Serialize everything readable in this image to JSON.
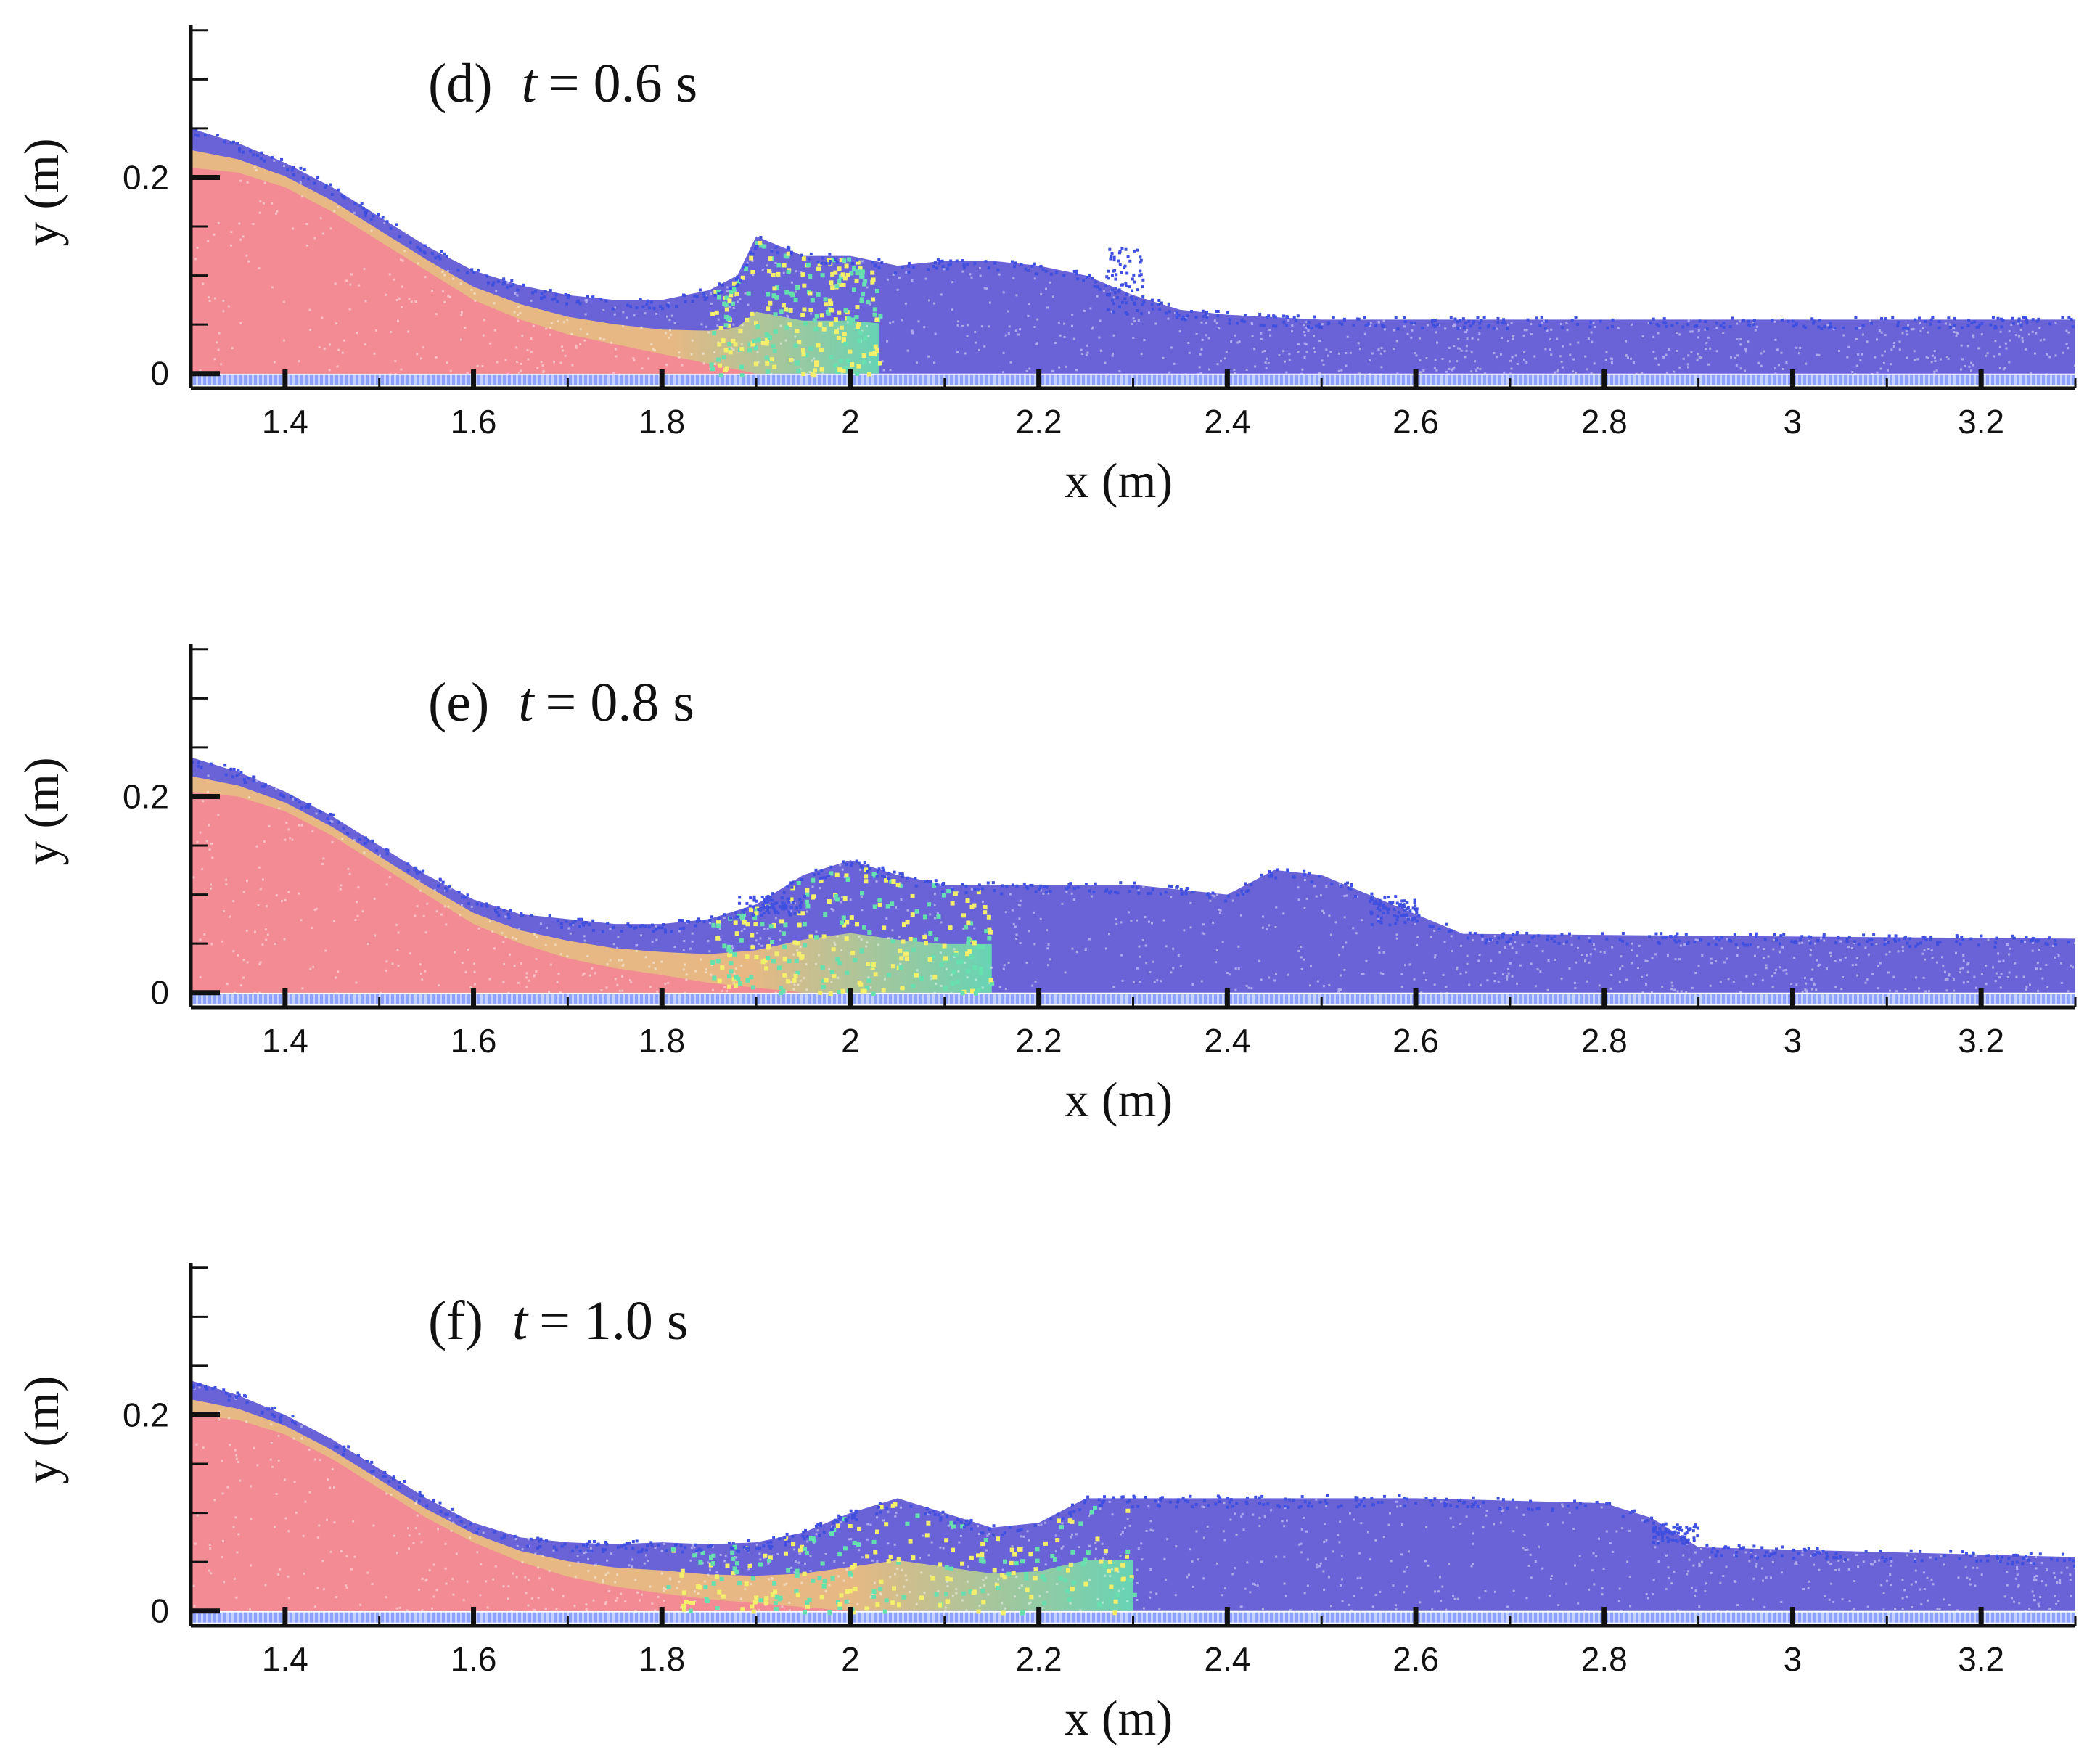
{
  "colors": {
    "core": "#f28b93",
    "transition_warm": "#f5c27a",
    "transition_cool": "#67e0b0",
    "fluid": "#6a63d8",
    "splash": "#3f4fe0",
    "bed": "#8ea2ff",
    "axis": "#111111"
  },
  "chart_data": [
    {
      "type": "scatter",
      "panel_label": "(d)",
      "time_var": "t",
      "time_value": "= 0.6 s",
      "xlabel": "x (m)",
      "ylabel": "y (m)",
      "xlim": [
        1.3,
        3.3
      ],
      "ylim": [
        -0.015,
        0.355
      ],
      "x_ticks": [
        1.4,
        1.6,
        1.8,
        2.0,
        2.2,
        2.4,
        2.6,
        2.8,
        3.0,
        3.2
      ],
      "x_tick_labels": [
        "1.4",
        "1.6",
        "1.8",
        "2",
        "2.2",
        "2.4",
        "2.6",
        "2.8",
        "3",
        "3.2"
      ],
      "y_ticks": [
        0,
        0.2
      ],
      "y_tick_labels": [
        "0",
        "0.2"
      ],
      "core_surface": {
        "x": [
          1.3,
          1.35,
          1.4,
          1.45,
          1.5,
          1.55,
          1.6,
          1.65,
          1.7,
          1.75,
          1.8,
          1.85,
          1.9
        ],
        "y": [
          0.21,
          0.205,
          0.19,
          0.165,
          0.135,
          0.105,
          0.075,
          0.055,
          0.04,
          0.03,
          0.02,
          0.01,
          0.0
        ]
      },
      "free_surface": {
        "x": [
          1.3,
          1.35,
          1.4,
          1.45,
          1.5,
          1.55,
          1.6,
          1.65,
          1.7,
          1.75,
          1.8,
          1.85,
          1.88,
          1.9,
          1.95,
          2.0,
          2.05,
          2.1,
          2.15,
          2.2,
          2.25,
          2.3,
          2.35,
          2.4,
          2.5,
          2.6,
          3.3
        ],
        "y": [
          0.25,
          0.235,
          0.215,
          0.19,
          0.16,
          0.13,
          0.105,
          0.09,
          0.08,
          0.075,
          0.075,
          0.085,
          0.1,
          0.14,
          0.12,
          0.12,
          0.11,
          0.115,
          0.115,
          0.11,
          0.1,
          0.08,
          0.065,
          0.06,
          0.055,
          0.055,
          0.055
        ]
      },
      "mixing_zone": [
        1.85,
        2.03
      ],
      "splash_clusters": [
        {
          "x": [
            2.27,
            2.31
          ],
          "y": [
            0.06,
            0.13
          ]
        }
      ]
    },
    {
      "type": "scatter",
      "panel_label": "(e)",
      "time_var": "t",
      "time_value": "= 0.8 s",
      "xlabel": "x (m)",
      "ylabel": "y (m)",
      "xlim": [
        1.3,
        3.3
      ],
      "ylim": [
        -0.015,
        0.355
      ],
      "x_ticks": [
        1.4,
        1.6,
        1.8,
        2.0,
        2.2,
        2.4,
        2.6,
        2.8,
        3.0,
        3.2
      ],
      "x_tick_labels": [
        "1.4",
        "1.6",
        "1.8",
        "2",
        "2.2",
        "2.4",
        "2.6",
        "2.8",
        "3",
        "3.2"
      ],
      "y_ticks": [
        0,
        0.2
      ],
      "y_tick_labels": [
        "0",
        "0.2"
      ],
      "core_surface": {
        "x": [
          1.3,
          1.35,
          1.4,
          1.45,
          1.5,
          1.55,
          1.6,
          1.65,
          1.7,
          1.75,
          1.8,
          1.85,
          1.9,
          1.95
        ],
        "y": [
          0.205,
          0.2,
          0.185,
          0.16,
          0.13,
          0.1,
          0.07,
          0.05,
          0.035,
          0.025,
          0.018,
          0.01,
          0.005,
          0.0
        ]
      },
      "free_surface": {
        "x": [
          1.3,
          1.35,
          1.4,
          1.45,
          1.5,
          1.55,
          1.6,
          1.65,
          1.7,
          1.75,
          1.8,
          1.85,
          1.9,
          1.95,
          2.0,
          2.05,
          2.1,
          2.15,
          2.2,
          2.3,
          2.4,
          2.45,
          2.5,
          2.55,
          2.6,
          2.65,
          3.3
        ],
        "y": [
          0.24,
          0.225,
          0.205,
          0.18,
          0.15,
          0.12,
          0.095,
          0.08,
          0.075,
          0.07,
          0.07,
          0.075,
          0.09,
          0.12,
          0.135,
          0.12,
          0.11,
          0.11,
          0.11,
          0.11,
          0.1,
          0.125,
          0.12,
          0.1,
          0.08,
          0.06,
          0.055
        ]
      },
      "mixing_zone": [
        1.85,
        2.15
      ],
      "splash_clusters": [
        {
          "x": [
            1.88,
            1.95
          ],
          "y": [
            0.08,
            0.1
          ]
        },
        {
          "x": [
            2.55,
            2.6
          ],
          "y": [
            0.07,
            0.1
          ]
        }
      ]
    },
    {
      "type": "scatter",
      "panel_label": "(f)",
      "time_var": "t",
      "time_value": "= 1.0 s",
      "xlabel": "x (m)",
      "ylabel": "y (m)",
      "xlim": [
        1.3,
        3.3
      ],
      "ylim": [
        -0.015,
        0.355
      ],
      "x_ticks": [
        1.4,
        1.6,
        1.8,
        2.0,
        2.2,
        2.4,
        2.6,
        2.8,
        3.0,
        3.2
      ],
      "x_tick_labels": [
        "1.4",
        "1.6",
        "1.8",
        "2",
        "2.2",
        "2.4",
        "2.6",
        "2.8",
        "3",
        "3.2"
      ],
      "y_ticks": [
        0,
        0.2
      ],
      "y_tick_labels": [
        "0",
        "0.2"
      ],
      "core_surface": {
        "x": [
          1.3,
          1.35,
          1.4,
          1.45,
          1.5,
          1.55,
          1.6,
          1.65,
          1.7,
          1.75,
          1.8,
          1.85,
          1.9,
          1.95,
          2.0
        ],
        "y": [
          0.2,
          0.195,
          0.18,
          0.155,
          0.125,
          0.095,
          0.07,
          0.05,
          0.035,
          0.025,
          0.018,
          0.012,
          0.008,
          0.004,
          0.0
        ]
      },
      "free_surface": {
        "x": [
          1.3,
          1.35,
          1.4,
          1.45,
          1.5,
          1.55,
          1.6,
          1.65,
          1.7,
          1.75,
          1.8,
          1.85,
          1.9,
          1.95,
          2.0,
          2.05,
          2.1,
          2.15,
          2.2,
          2.25,
          2.4,
          2.6,
          2.8,
          2.85,
          2.9,
          3.3
        ],
        "y": [
          0.235,
          0.22,
          0.2,
          0.175,
          0.145,
          0.115,
          0.09,
          0.075,
          0.07,
          0.068,
          0.07,
          0.068,
          0.07,
          0.08,
          0.1,
          0.115,
          0.1,
          0.085,
          0.09,
          0.115,
          0.115,
          0.115,
          0.11,
          0.095,
          0.065,
          0.055
        ]
      },
      "mixing_zone": [
        1.8,
        2.3
      ],
      "splash_clusters": [
        {
          "x": [
            2.85,
            2.9
          ],
          "y": [
            0.07,
            0.09
          ]
        }
      ]
    }
  ]
}
